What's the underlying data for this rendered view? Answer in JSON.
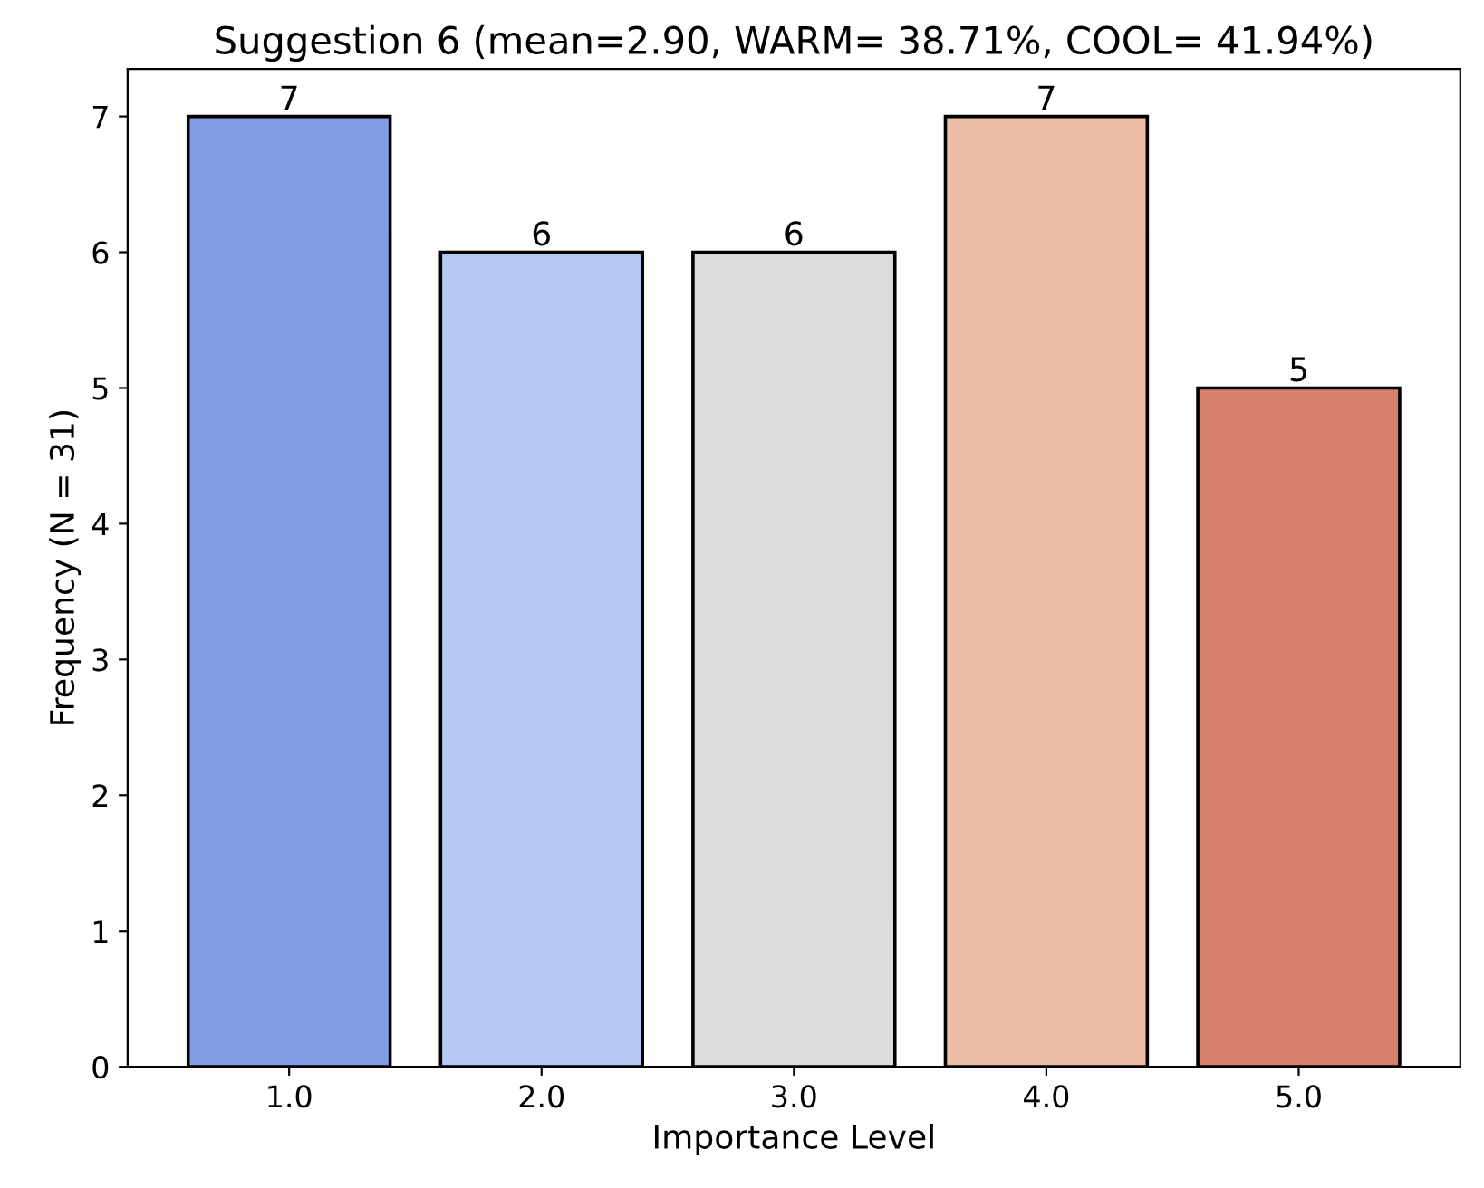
{
  "chart_data": {
    "type": "bar",
    "title": "Suggestion 6 (mean=2.90, WARM= 38.71%, COOL= 41.94%)",
    "xlabel": "Importance Level",
    "ylabel": "Frequency (N = 31)",
    "categories": [
      "1.0",
      "2.0",
      "3.0",
      "4.0",
      "5.0"
    ],
    "values": [
      7,
      6,
      6,
      7,
      5
    ],
    "colors": [
      "#829ce4",
      "#b5c9f2",
      "#dcdcdc",
      "#edbca4",
      "#d6806b"
    ],
    "ylim": [
      0,
      7.35
    ],
    "yticks": [
      0,
      1,
      2,
      3,
      4,
      5,
      6,
      7
    ],
    "grid": false,
    "data_labels": true
  }
}
